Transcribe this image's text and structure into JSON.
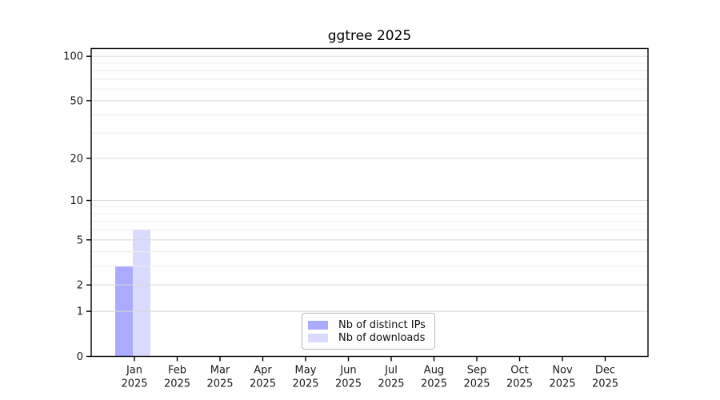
{
  "chart_data": {
    "type": "bar",
    "title": "ggtree 2025",
    "categories": [
      "Jan",
      "Feb",
      "Mar",
      "Apr",
      "May",
      "Jun",
      "Jul",
      "Aug",
      "Sep",
      "Oct",
      "Nov",
      "Dec"
    ],
    "year_label": "2025",
    "series": [
      {
        "name": "Nb of distinct IPs",
        "color": "#aaaaff",
        "values": [
          3,
          0,
          0,
          0,
          0,
          0,
          0,
          0,
          0,
          0,
          0,
          0
        ]
      },
      {
        "name": "Nb of downloads",
        "color": "#dadaff",
        "values": [
          6,
          0,
          0,
          0,
          0,
          0,
          0,
          0,
          0,
          0,
          0,
          0
        ]
      }
    ],
    "yscale": "log1p",
    "ylim": [
      0,
      100
    ],
    "yticks": [
      0,
      1,
      2,
      5,
      10,
      20,
      50,
      100
    ],
    "yticks_minor": [
      3,
      4,
      6,
      7,
      8,
      9,
      30,
      40,
      60,
      70,
      80,
      90
    ],
    "grid": "horizontal",
    "legend_position": "inside-bottom-center",
    "colors": {
      "axis": "#000000",
      "tick_text": "#1a1a1a",
      "grid_major": "#d8d8d8",
      "grid_minor": "#ededed",
      "background": "#ffffff"
    }
  }
}
